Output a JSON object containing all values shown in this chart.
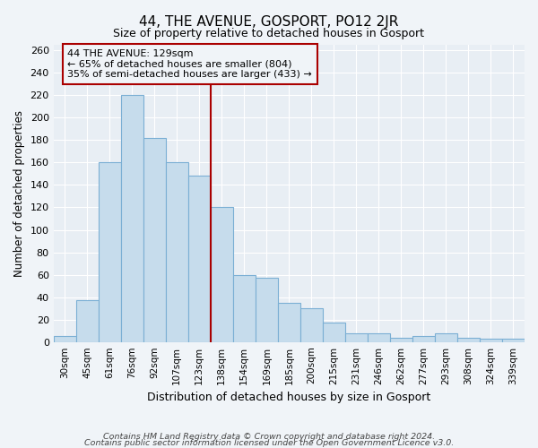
{
  "title": "44, THE AVENUE, GOSPORT, PO12 2JR",
  "subtitle": "Size of property relative to detached houses in Gosport",
  "xlabel": "Distribution of detached houses by size in Gosport",
  "ylabel": "Number of detached properties",
  "bar_labels": [
    "30sqm",
    "45sqm",
    "61sqm",
    "76sqm",
    "92sqm",
    "107sqm",
    "123sqm",
    "138sqm",
    "154sqm",
    "169sqm",
    "185sqm",
    "200sqm",
    "215sqm",
    "231sqm",
    "246sqm",
    "262sqm",
    "277sqm",
    "293sqm",
    "308sqm",
    "324sqm",
    "339sqm"
  ],
  "bar_values": [
    5,
    37,
    160,
    220,
    182,
    160,
    148,
    120,
    60,
    57,
    35,
    30,
    17,
    8,
    8,
    4,
    5,
    8,
    4,
    3,
    3
  ],
  "bar_color": "#c6dcec",
  "bar_edge_color": "#7bafd4",
  "marker_index": 6,
  "marker_line_color": "#aa0000",
  "annotation_line1": "44 THE AVENUE: 129sqm",
  "annotation_line2": "← 65% of detached houses are smaller (804)",
  "annotation_line3": "35% of semi-detached houses are larger (433) →",
  "footnote_line1": "Contains HM Land Registry data © Crown copyright and database right 2024.",
  "footnote_line2": "Contains public sector information licensed under the Open Government Licence v3.0.",
  "ylim": [
    0,
    265
  ],
  "yticks": [
    0,
    20,
    40,
    60,
    80,
    100,
    120,
    140,
    160,
    180,
    200,
    220,
    240,
    260
  ],
  "background_color": "#f0f4f8",
  "plot_bg_color": "#e8eef4",
  "grid_color": "#ffffff"
}
